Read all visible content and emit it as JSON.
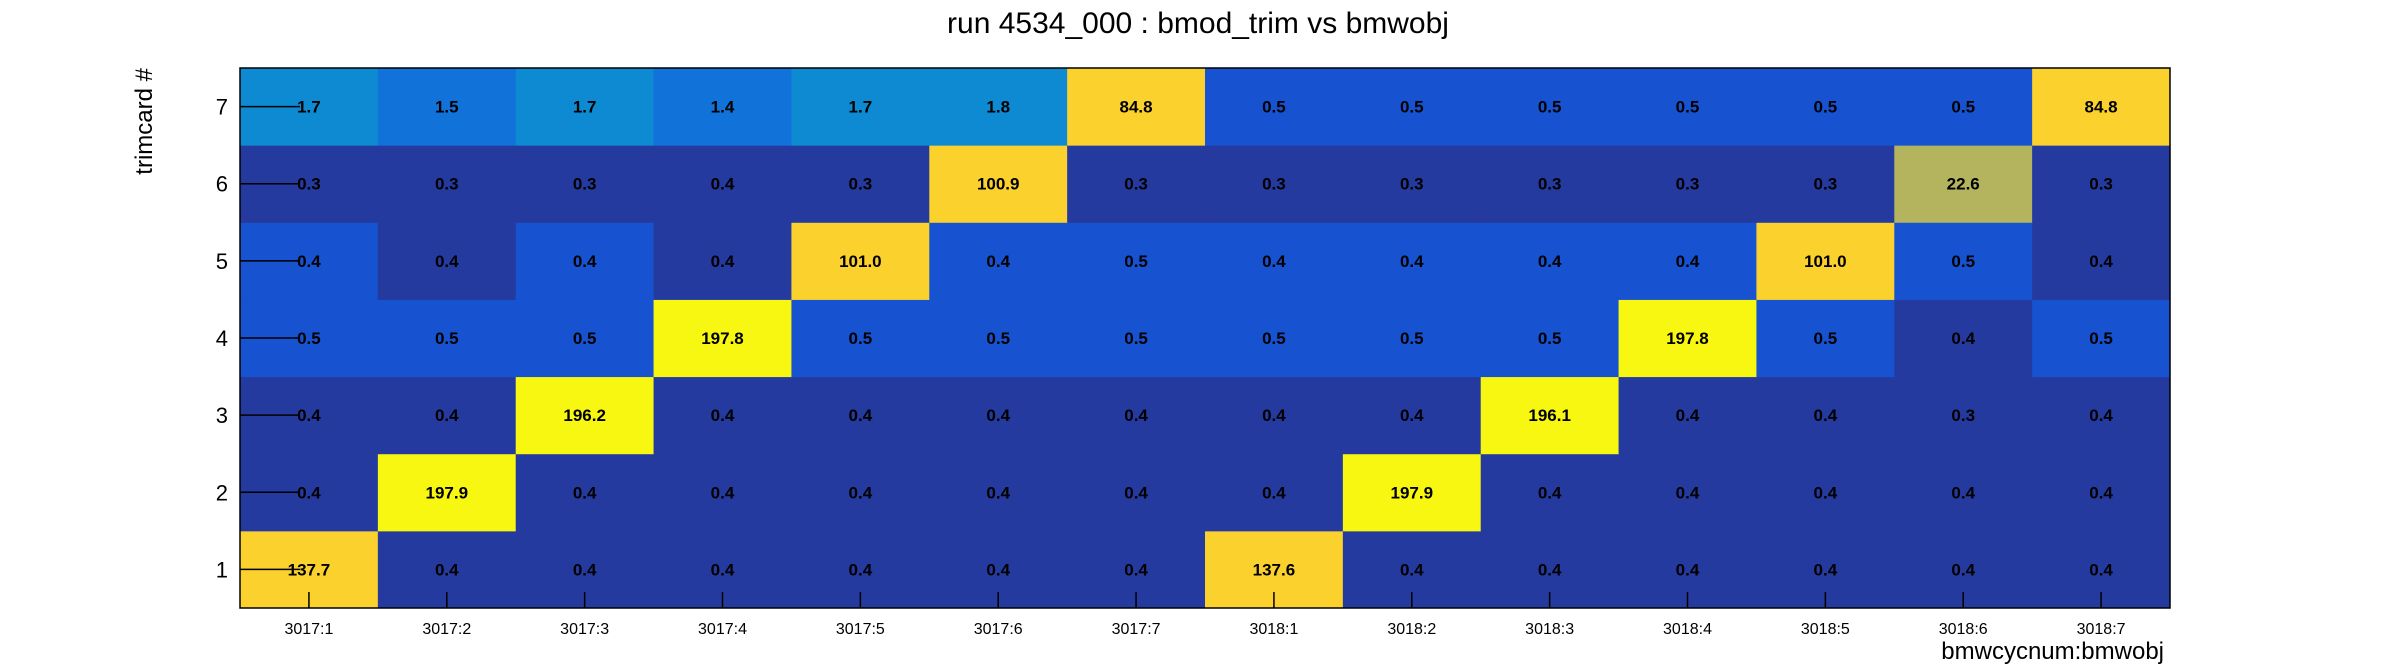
{
  "chart_data": {
    "type": "heatmap",
    "title": "run 4534_000 : bmod_trim vs bmwobj",
    "xlabel": "bmwcycnum:bmwobj",
    "ylabel": "trimcard #",
    "x_categories": [
      "3017:1",
      "3017:2",
      "3017:3",
      "3017:4",
      "3017:5",
      "3017:6",
      "3017:7",
      "3018:1",
      "3018:2",
      "3018:3",
      "3018:4",
      "3018:5",
      "3018:6",
      "3018:7"
    ],
    "y_categories": [
      "1",
      "2",
      "3",
      "4",
      "5",
      "6",
      "7"
    ],
    "values": [
      [
        137.7,
        0.4,
        0.4,
        0.4,
        0.4,
        0.4,
        0.4,
        137.6,
        0.4,
        0.4,
        0.4,
        0.4,
        0.4,
        0.4
      ],
      [
        0.4,
        197.9,
        0.4,
        0.4,
        0.4,
        0.4,
        0.4,
        0.4,
        197.9,
        0.4,
        0.4,
        0.4,
        0.4,
        0.4
      ],
      [
        0.4,
        0.4,
        196.2,
        0.4,
        0.4,
        0.4,
        0.4,
        0.4,
        0.4,
        196.1,
        0.4,
        0.4,
        0.3,
        0.4
      ],
      [
        0.5,
        0.5,
        0.5,
        197.8,
        0.5,
        0.5,
        0.5,
        0.5,
        0.5,
        0.5,
        197.8,
        0.5,
        0.4,
        0.5
      ],
      [
        0.4,
        0.4,
        0.4,
        0.4,
        101.0,
        0.4,
        0.5,
        0.4,
        0.4,
        0.4,
        0.4,
        101.0,
        0.5,
        0.4
      ],
      [
        0.3,
        0.3,
        0.3,
        0.4,
        0.3,
        100.9,
        0.3,
        0.3,
        0.3,
        0.3,
        0.3,
        0.3,
        22.6,
        0.3
      ],
      [
        1.7,
        1.5,
        1.7,
        1.4,
        1.7,
        1.8,
        84.8,
        0.5,
        0.5,
        0.5,
        0.5,
        0.5,
        0.5,
        84.8
      ]
    ],
    "cell_colors": [
      [
        "#fad12d",
        "#253a9e",
        "#253a9e",
        "#253a9e",
        "#253a9e",
        "#253a9e",
        "#253a9e",
        "#fad12d",
        "#253a9e",
        "#253a9e",
        "#253a9e",
        "#253a9e",
        "#253a9e",
        "#253a9e"
      ],
      [
        "#253a9e",
        "#f7f711",
        "#253a9e",
        "#253a9e",
        "#253a9e",
        "#253a9e",
        "#253a9e",
        "#253a9e",
        "#f7f711",
        "#253a9e",
        "#253a9e",
        "#253a9e",
        "#253a9e",
        "#253a9e"
      ],
      [
        "#253a9e",
        "#253a9e",
        "#f7f711",
        "#253a9e",
        "#253a9e",
        "#253a9e",
        "#253a9e",
        "#253a9e",
        "#253a9e",
        "#f7f711",
        "#253a9e",
        "#253a9e",
        "#253a9e",
        "#253a9e"
      ],
      [
        "#1753d0",
        "#1753d0",
        "#1753d0",
        "#f7f711",
        "#1753d0",
        "#1753d0",
        "#1753d0",
        "#1753d0",
        "#1753d0",
        "#1753d0",
        "#f7f711",
        "#1753d0",
        "#253a9e",
        "#1753d0"
      ],
      [
        "#1753d0",
        "#253a9e",
        "#1753d0",
        "#253a9e",
        "#fad12d",
        "#1753d0",
        "#1753d0",
        "#1753d0",
        "#1753d0",
        "#1753d0",
        "#1753d0",
        "#fad12d",
        "#1753d0",
        "#253a9e"
      ],
      [
        "#253a9e",
        "#253a9e",
        "#253a9e",
        "#253a9e",
        "#253a9e",
        "#fad12d",
        "#253a9e",
        "#253a9e",
        "#253a9e",
        "#253a9e",
        "#253a9e",
        "#253a9e",
        "#b4b45e",
        "#253a9e"
      ],
      [
        "#0d8ad2",
        "#1172da",
        "#0d8ad2",
        "#1172da",
        "#0d8ad2",
        "#0d8ad2",
        "#fad12d",
        "#1753d0",
        "#1753d0",
        "#1753d0",
        "#1753d0",
        "#1753d0",
        "#1753d0",
        "#fad12d"
      ]
    ],
    "grid": false,
    "legend": "none"
  }
}
